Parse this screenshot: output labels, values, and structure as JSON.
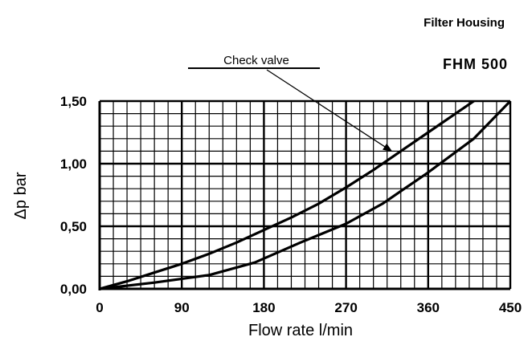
{
  "header": {
    "title": "Filter Housing",
    "model": "FHM 500"
  },
  "chart_data": {
    "type": "line",
    "title": "",
    "xlabel": "Flow rate l/min",
    "ylabel": "Δp bar",
    "xlim": [
      0,
      450
    ],
    "ylim": [
      0,
      1.5
    ],
    "x_ticks": [
      "0",
      "90",
      "180",
      "270",
      "360",
      "450"
    ],
    "y_ticks": [
      "0,00",
      "0,50",
      "1,00",
      "1,50"
    ],
    "grid": true,
    "annotation": {
      "text": "Check valve",
      "points_to": {
        "x": 320,
        "y": 1.1
      }
    },
    "series": [
      {
        "x": [
          0,
          30,
          60,
          90,
          120,
          150,
          180,
          210,
          240,
          270,
          300,
          330,
          360,
          390,
          420
        ],
        "y": [
          0.0,
          0.06,
          0.13,
          0.2,
          0.28,
          0.37,
          0.47,
          0.57,
          0.68,
          0.81,
          0.95,
          1.1,
          1.25,
          1.4,
          1.55
        ]
      },
      {
        "x": [
          0,
          60,
          120,
          170,
          220,
          270,
          310,
          360,
          410,
          450
        ],
        "y": [
          0.0,
          0.05,
          0.11,
          0.21,
          0.37,
          0.52,
          0.68,
          0.93,
          1.2,
          1.5
        ]
      }
    ]
  }
}
